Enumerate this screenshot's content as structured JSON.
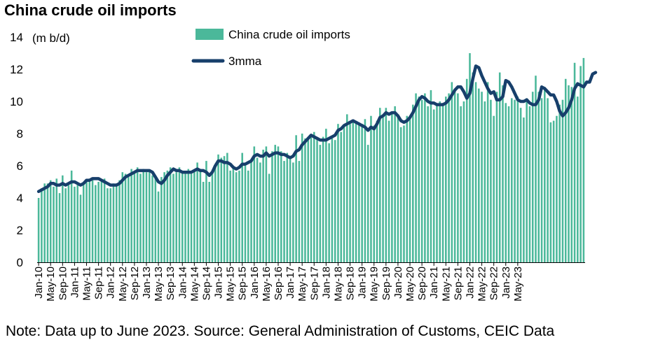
{
  "title": "China crude oil imports",
  "footnote": "Note: Data up to June 2023. Source: General Administration of Customs, CEIC Data",
  "colors": {
    "bars": "#4BB89A",
    "line": "#173F6B",
    "axis": "#000000"
  },
  "chart_data": {
    "type": "bar",
    "title": "China crude oil imports",
    "ylabel": "(m b/d)",
    "ylim": [
      0,
      14
    ],
    "yticks": [
      0,
      2,
      4,
      6,
      8,
      10,
      12,
      14
    ],
    "grid": false,
    "legend_position": "top-center",
    "x_tick_labels": [
      "Jan-10",
      "May-10",
      "Sep-10",
      "Jan-11",
      "May-11",
      "Sep-11",
      "Jan-12",
      "May-12",
      "Sep-12",
      "Jan-13",
      "May-13",
      "Sep-13",
      "Jan-14",
      "May-14",
      "Sep-14",
      "Jan-15",
      "May-15",
      "Sep-15",
      "Jan-16",
      "May-16",
      "Sep-16",
      "Jan-17",
      "May-17",
      "Sep-17",
      "Jan-18",
      "May-18",
      "Sep-18",
      "Jan-19",
      "May-19",
      "Sep-19",
      "Jan-20",
      "May-20",
      "Sep-20",
      "Jan-21",
      "May-21",
      "Sep-21",
      "Jan-22",
      "May-22",
      "Sep-22",
      "Jan-23",
      "May-23"
    ],
    "x_start": "Jan-10",
    "x_end": "Jun-23",
    "series": [
      {
        "name": "China crude oil imports",
        "kind": "bar",
        "values": [
          4.0,
          4.6,
          4.9,
          4.9,
          5.1,
          4.7,
          5.2,
          4.3,
          5.4,
          4.6,
          4.8,
          5.7,
          4.7,
          4.8,
          4.2,
          5.0,
          5.1,
          5.2,
          5.1,
          4.8,
          5.0,
          5.1,
          5.2,
          4.6,
          4.6,
          4.9,
          4.9,
          5.1,
          5.6,
          5.5,
          5.3,
          5.8,
          5.6,
          5.9,
          5.5,
          5.8,
          5.6,
          5.7,
          5.4,
          5.2,
          4.4,
          5.3,
          5.6,
          5.7,
          5.9,
          5.5,
          5.6,
          5.9,
          5.7,
          5.6,
          5.8,
          5.5,
          5.7,
          6.2,
          5.8,
          5.0,
          6.3,
          5.0,
          5.6,
          6.1,
          6.7,
          6.5,
          6.6,
          6.8,
          5.7,
          6.0,
          5.6,
          5.7,
          6.8,
          6.0,
          5.7,
          6.3,
          7.2,
          6.5,
          6.2,
          7.0,
          7.2,
          5.5,
          6.9,
          7.3,
          7.2,
          6.9,
          6.3,
          6.8,
          6.4,
          6.2,
          7.9,
          6.3,
          8.0,
          7.7,
          7.6,
          7.9,
          8.1,
          7.6,
          7.3,
          7.8,
          8.3,
          7.4,
          7.7,
          7.6,
          8.6,
          8.1,
          8.4,
          9.2,
          8.6,
          8.8,
          8.7,
          8.7,
          8.6,
          8.9,
          7.3,
          9.1,
          8.5,
          8.8,
          9.6,
          9.0,
          9.6,
          8.8,
          9.3,
          9.7,
          9.2,
          8.4,
          8.5,
          9.1,
          9.0,
          9.8,
          10.5,
          10.3,
          10.1,
          10.5,
          9.7,
          10.7,
          9.5,
          9.8,
          10.0,
          9.9,
          10.3,
          10.5,
          11.2,
          10.8,
          10.5,
          9.7,
          10.0,
          11.4,
          13.0,
          11.8,
          11.2,
          10.8,
          10.6,
          10.0,
          11.2,
          10.1,
          9.1,
          10.6,
          11.8,
          11.0,
          9.9,
          9.7,
          10.2,
          10.1,
          10.3,
          9.6,
          9.0,
          10.2,
          9.7,
          10.6,
          11.6,
          10.6,
          10.2,
          10.9,
          10.2,
          8.7,
          8.8,
          9.1,
          9.8,
          10.1,
          11.4,
          11.0,
          10.9,
          12.4,
          10.3,
          12.2,
          12.7
        ]
      },
      {
        "name": "3mma",
        "kind": "line",
        "values": [
          4.4,
          4.5,
          4.6,
          4.7,
          4.9,
          4.9,
          4.8,
          4.8,
          4.9,
          4.8,
          4.9,
          5.0,
          5.0,
          4.9,
          4.8,
          4.9,
          5.1,
          5.1,
          5.2,
          5.2,
          5.2,
          5.1,
          5.0,
          4.9,
          4.8,
          4.8,
          4.8,
          4.9,
          5.1,
          5.3,
          5.4,
          5.5,
          5.6,
          5.7,
          5.7,
          5.7,
          5.7,
          5.7,
          5.6,
          5.3,
          5.0,
          4.9,
          5.1,
          5.4,
          5.6,
          5.8,
          5.7,
          5.7,
          5.6,
          5.6,
          5.6,
          5.6,
          5.7,
          5.8,
          5.7,
          5.7,
          5.6,
          5.4,
          5.6,
          6.0,
          6.3,
          6.3,
          6.2,
          6.2,
          6.1,
          5.9,
          5.8,
          5.9,
          6.1,
          6.1,
          6.2,
          6.3,
          6.6,
          6.7,
          6.6,
          6.6,
          6.8,
          6.6,
          6.7,
          6.8,
          6.8,
          6.7,
          6.7,
          6.6,
          6.5,
          6.6,
          6.9,
          7.0,
          7.3,
          7.5,
          7.7,
          7.9,
          7.8,
          7.7,
          7.6,
          7.6,
          7.6,
          7.7,
          7.8,
          7.9,
          8.2,
          8.3,
          8.5,
          8.6,
          8.7,
          8.8,
          8.7,
          8.6,
          8.5,
          8.4,
          8.2,
          8.4,
          8.3,
          8.6,
          9.0,
          9.1,
          9.3,
          9.2,
          9.3,
          9.3,
          9.1,
          8.8,
          8.7,
          8.8,
          9.0,
          9.3,
          9.7,
          10.1,
          10.3,
          10.2,
          10.0,
          9.9,
          9.9,
          9.8,
          9.8,
          9.8,
          9.9,
          10.1,
          10.4,
          10.7,
          10.9,
          10.9,
          10.6,
          10.2,
          10.5,
          11.4,
          12.2,
          12.1,
          11.6,
          11.2,
          10.8,
          10.5,
          10.6,
          10.1,
          10.1,
          10.3,
          11.3,
          11.2,
          10.9,
          10.5,
          10.1,
          10.0,
          10.0,
          10.1,
          9.9,
          9.8,
          9.8,
          10.1,
          10.9,
          10.8,
          10.6,
          10.4,
          10.4,
          10.0,
          9.4,
          9.1,
          9.3,
          9.6,
          10.1,
          10.8,
          11.1,
          11.0,
          10.9,
          11.2,
          11.2,
          11.7,
          11.8
        ]
      }
    ]
  }
}
